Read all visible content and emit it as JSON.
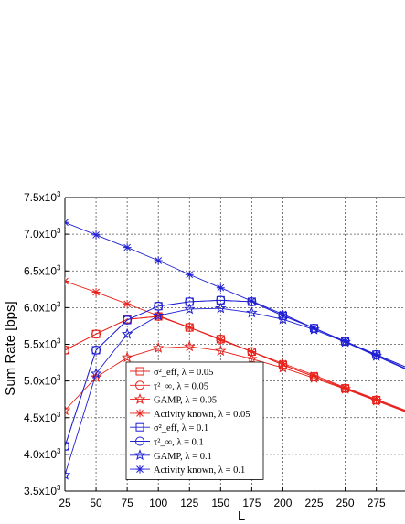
{
  "chart_data": {
    "type": "line",
    "title": "",
    "xlabel": "L",
    "ylabel": "Sum Rate [bps]",
    "x": [
      25,
      50,
      75,
      100,
      125,
      150,
      175,
      200,
      225,
      250,
      275
    ],
    "xticks": [
      25,
      50,
      75,
      100,
      125,
      150,
      175,
      200,
      225,
      250,
      275
    ],
    "xtick_labels": [
      "25",
      "50",
      "75",
      "100",
      "125",
      "150",
      "175",
      "200",
      "225",
      "250",
      "275"
    ],
    "xlim": [
      25,
      298
    ],
    "ylim": [
      3500,
      7500
    ],
    "yticks": [
      3500,
      4000,
      4500,
      5000,
      5500,
      6000,
      6500,
      7000,
      7500
    ],
    "ytick_labels": [
      "3.5x10",
      "4.0x10",
      "4.5x10",
      "5.0x10",
      "5.5x10",
      "6.0x10",
      "6.5x10",
      "7.0x10",
      "7.5x10"
    ],
    "ytick_exponent": "3",
    "grid": true,
    "legend_position": "bottom-center",
    "series": [
      {
        "name": "σ²_eff, λ = 0.05",
        "color": "#e8211b",
        "marker": "square",
        "values": [
          5420,
          5640,
          5840,
          5880,
          5730,
          5570,
          5400,
          5220,
          5060,
          4900,
          4740
        ]
      },
      {
        "name": "τ²_∞, λ = 0.05",
        "color": "#e8211b",
        "marker": "circle",
        "values": [
          5420,
          5640,
          5840,
          5880,
          5730,
          5570,
          5400,
          5220,
          5060,
          4900,
          4740
        ]
      },
      {
        "name": "GAMP, λ = 0.05",
        "color": "#e8211b",
        "marker": "star",
        "values": [
          4600,
          5050,
          5320,
          5450,
          5470,
          5410,
          5300,
          5180,
          5040,
          4890,
          4730
        ]
      },
      {
        "name": "Activity known, λ = 0.05",
        "color": "#e8211b",
        "marker": "asterisk",
        "values": [
          6360,
          6210,
          6050,
          5890,
          5730,
          5560,
          5400,
          5240,
          5080,
          4910,
          4750
        ]
      },
      {
        "name": "σ²_eff, λ = 0.1",
        "color": "#1f1fd4",
        "marker": "square",
        "values": [
          4110,
          5420,
          5830,
          6020,
          6080,
          6100,
          6080,
          5890,
          5720,
          5540,
          5360
        ]
      },
      {
        "name": "τ²_∞, λ = 0.1",
        "color": "#1f1fd4",
        "marker": "circle",
        "values": [
          4110,
          5420,
          5830,
          6020,
          6080,
          6100,
          6080,
          5890,
          5720,
          5540,
          5360
        ]
      },
      {
        "name": "GAMP, λ = 0.1",
        "color": "#1f1fd4",
        "marker": "star",
        "values": [
          3720,
          5100,
          5640,
          5890,
          5980,
          5990,
          5930,
          5840,
          5700,
          5530,
          5340
        ]
      },
      {
        "name": "Activity known, λ = 0.1",
        "color": "#1f1fd4",
        "marker": "asterisk",
        "values": [
          7160,
          6990,
          6820,
          6640,
          6450,
          6270,
          6090,
          5910,
          5720,
          5540,
          5350
        ]
      }
    ]
  }
}
